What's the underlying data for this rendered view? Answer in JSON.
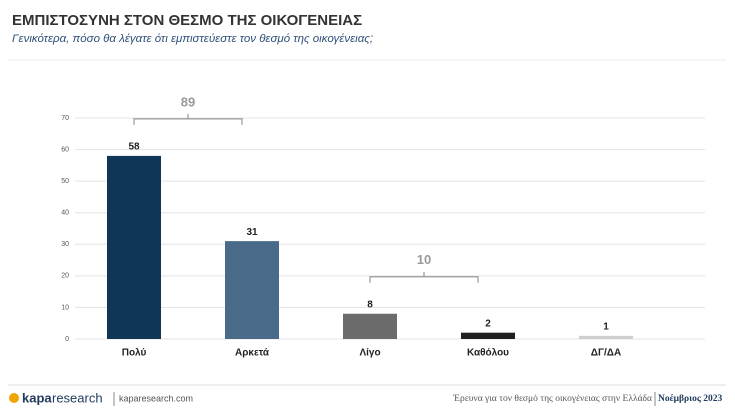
{
  "chart_data": {
    "type": "bar",
    "title": "ΕΜΠΙΣΤΟΣΥΝΗ ΣΤΟΝ ΘΕΣΜΟ ΤΗΣ ΟΙΚΟΓΕΝΕΙΑΣ",
    "subtitle": "Γενικότερα, πόσο θα λέγατε ότι εμπιστεύεστε τον θεσμό της οικογένειας;",
    "categories": [
      "Πολύ",
      "Αρκετά",
      "Λίγο",
      "Καθόλου",
      "ΔΓ/ΔΑ"
    ],
    "values": [
      58,
      31,
      8,
      2,
      1
    ],
    "colors": [
      "#0f3657",
      "#4a6a89",
      "#6b6b6b",
      "#202020",
      "#cfcfcf"
    ],
    "ylim": [
      0,
      70
    ],
    "yticks": [
      0,
      10,
      20,
      30,
      40,
      50,
      60,
      70
    ],
    "grid": true,
    "brackets": [
      {
        "value": 89,
        "span": [
          "Πολύ",
          "Αρκετά"
        ]
      },
      {
        "value": 10,
        "span": [
          "Λίγο",
          "Καθόλου"
        ]
      }
    ]
  },
  "footer": {
    "brand": "kapa",
    "brand_suffix": "research",
    "url": "kaparesearch.com",
    "survey": "Έρευνα για τον θεσμό της οικογένειας στην Ελλάδα",
    "date": "Νοέμβριος 2023"
  }
}
